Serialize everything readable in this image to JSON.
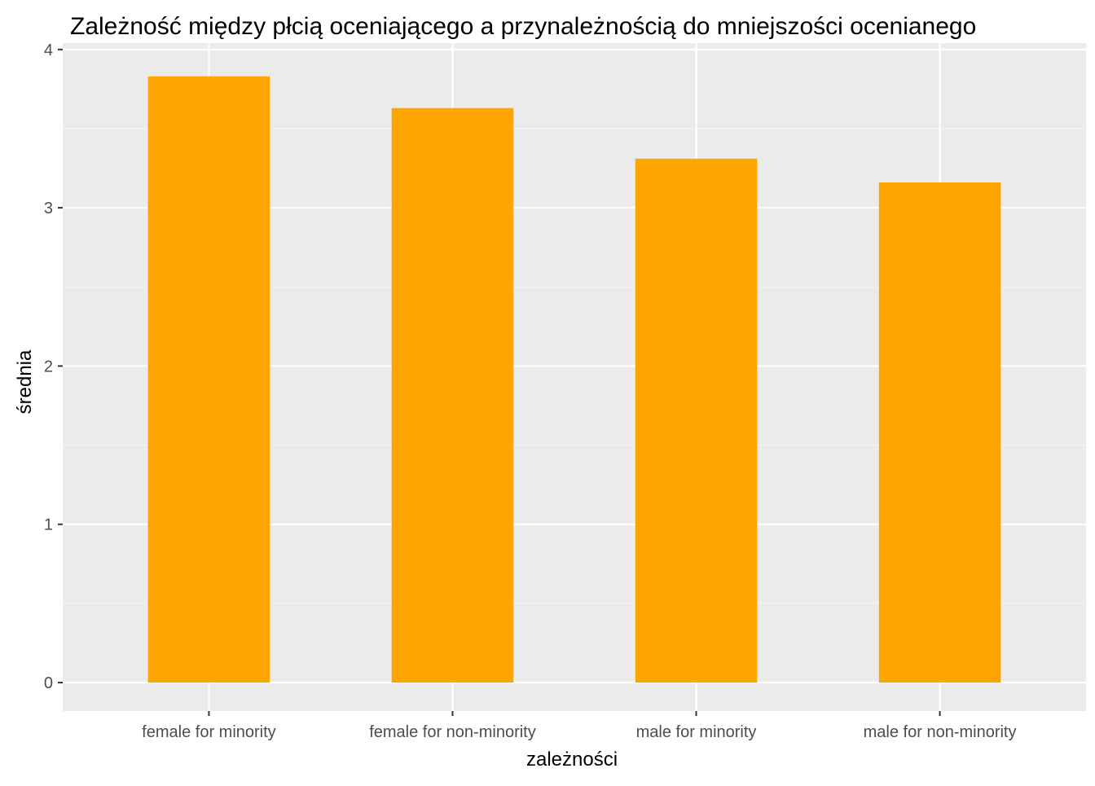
{
  "chart_data": {
    "type": "bar",
    "title": "Zależność między płcią oceniającego a przynależnością do mniejszości ocenianego",
    "xlabel": "zależności",
    "ylabel": "średnia",
    "categories": [
      "female for minority",
      "female for non-minority",
      "male for minority",
      "male for non-minority"
    ],
    "values": [
      3.83,
      3.63,
      3.31,
      3.16
    ],
    "ylim": [
      -0.18,
      4.04
    ],
    "yticks": [
      0,
      1,
      2,
      3,
      4
    ],
    "ytick_labels": [
      "0",
      "1",
      "2",
      "3",
      "4"
    ],
    "grid": true,
    "colors": {
      "bar": "#FFA500",
      "panel_background": "#EBEBEB",
      "grid_major": "#FFFFFF",
      "grid_minor": "#F5F5F5",
      "tick": "#333333"
    }
  }
}
